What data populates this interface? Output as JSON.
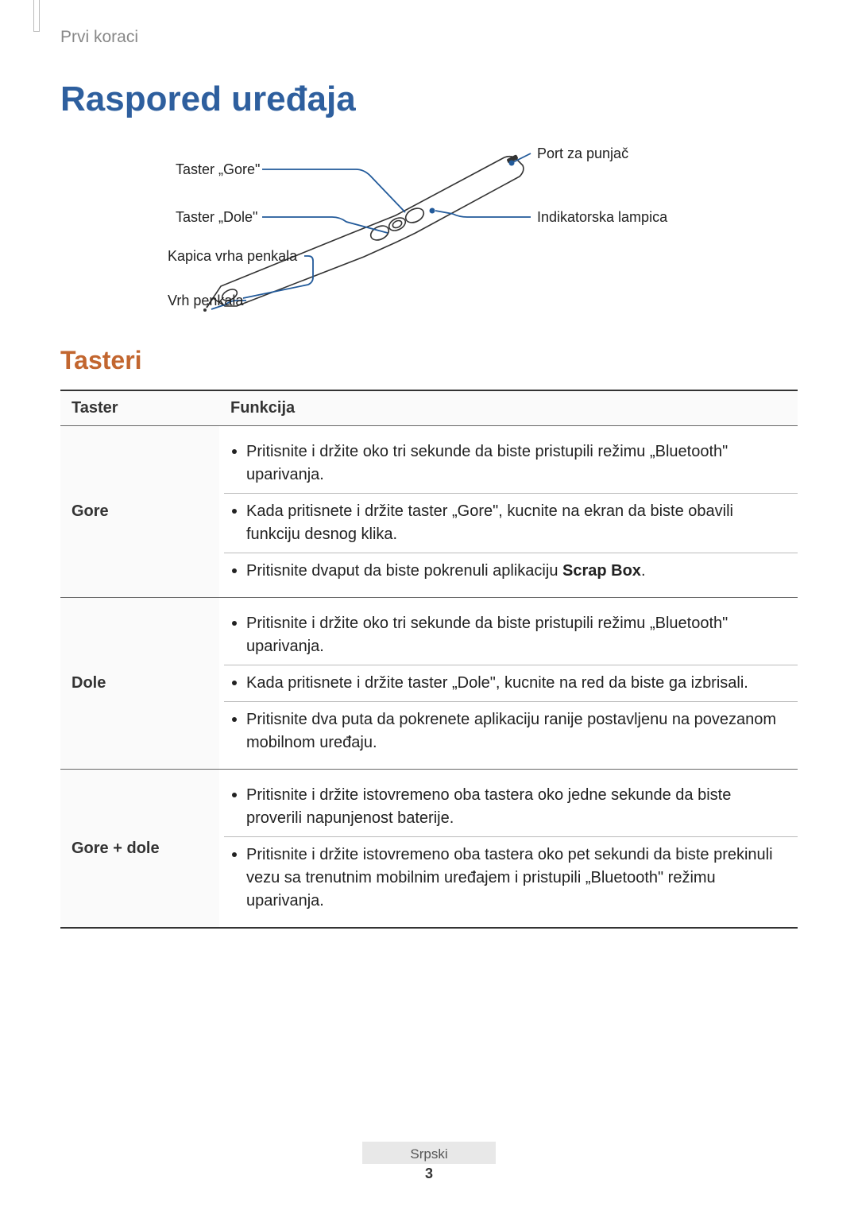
{
  "breadcrumb": "Prvi koraci",
  "title": "Raspored uređaja",
  "diagram": {
    "label_gore": "Taster „Gore\"",
    "label_dole": "Taster „Dole\"",
    "label_kapica": "Kapica vrha penkala",
    "label_vrh": "Vrh penkala",
    "label_port": "Port za punjač",
    "label_indikator": "Indikatorska lampica",
    "stroke": "#225a9a",
    "pen_fill": "#ffffff",
    "pen_stroke": "#333333"
  },
  "section": "Tasteri",
  "table": {
    "header_taster": "Taster",
    "header_funkcija": "Funkcija",
    "rows": [
      {
        "label": "Gore",
        "items": [
          {
            "html": "Pritisnite i držite oko tri sekunde da biste pristupili režimu „Bluetooth\" uparivanja."
          },
          {
            "html": "Kada pritisnete i držite taster „Gore\", kucnite na ekran da biste obavili funkciju desnog klika."
          },
          {
            "html": "Pritisnite dvaput da biste pokrenuli aplikaciju <b>Scrap Box</b>."
          }
        ]
      },
      {
        "label": "Dole",
        "items": [
          {
            "html": "Pritisnite i držite oko tri sekunde da biste pristupili režimu „Bluetooth\" uparivanja."
          },
          {
            "html": "Kada pritisnete i držite taster „Dole\", kucnite na red da biste ga izbrisali."
          },
          {
            "html": "Pritisnite dva puta da pokrenete aplikaciju ranije postavljenu na povezanom mobilnom uređaju."
          }
        ]
      },
      {
        "label": "Gore + dole",
        "items": [
          {
            "html": "Pritisnite i držite istovremeno oba tastera oko jedne sekunde da biste proverili napunjenost baterije."
          },
          {
            "html": "Pritisnite i držite istovremeno oba tastera oko pet sekundi da biste prekinuli vezu sa trenutnim mobilnim uređajem i pristupili „Bluetooth\" režimu uparivanja."
          }
        ]
      }
    ]
  },
  "footer": {
    "lang": "Srpski",
    "page": "3"
  }
}
